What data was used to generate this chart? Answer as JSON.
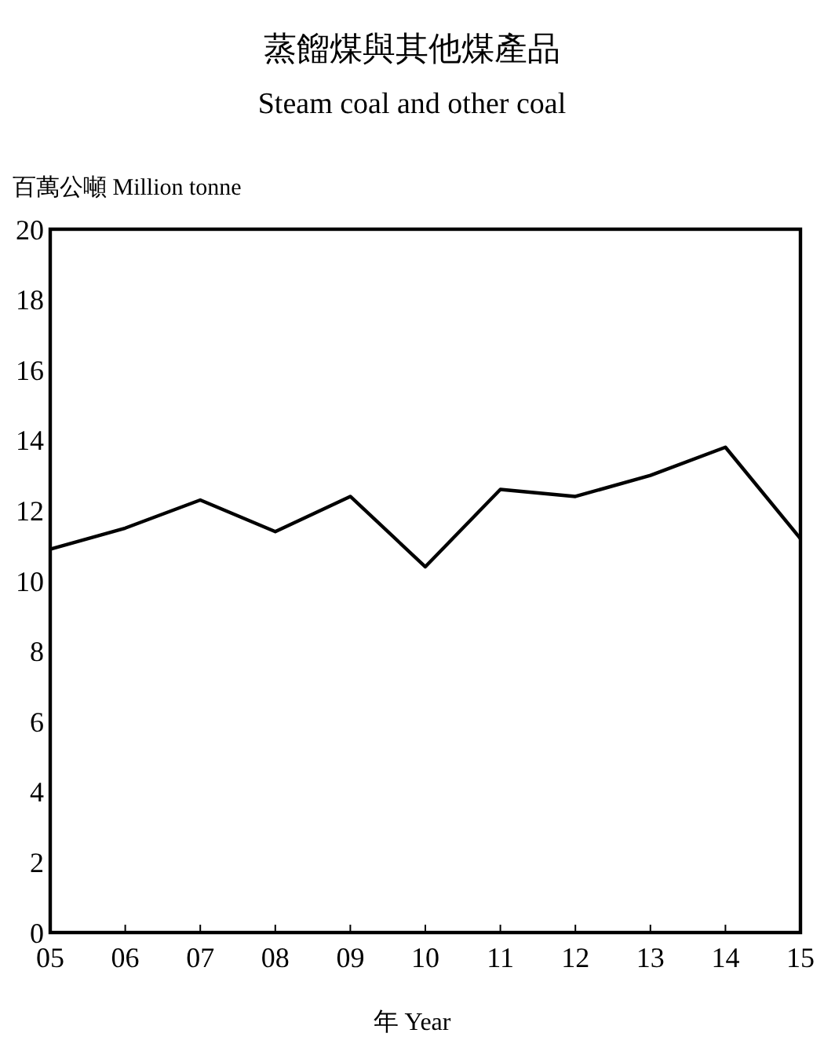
{
  "chart_data": {
    "type": "line",
    "title": "蒸餾煤與其他煤產品",
    "subtitle": "Steam coal and other coal",
    "ylabel": "百萬公噸 Million tonne",
    "xlabel": "年 Year",
    "categories": [
      "05",
      "06",
      "07",
      "08",
      "09",
      "10",
      "11",
      "12",
      "13",
      "14",
      "15"
    ],
    "series": [
      {
        "color": "#000000",
        "values": [
          10.9,
          11.5,
          12.3,
          11.4,
          12.4,
          10.4,
          12.6,
          12.4,
          13.0,
          13.8,
          11.2
        ]
      }
    ],
    "ylim": [
      0,
      20
    ],
    "yticks": [
      0,
      2,
      4,
      6,
      8,
      10,
      12,
      14,
      16,
      18,
      20
    ],
    "grid": false,
    "marker": "none",
    "line_style": "solid"
  }
}
